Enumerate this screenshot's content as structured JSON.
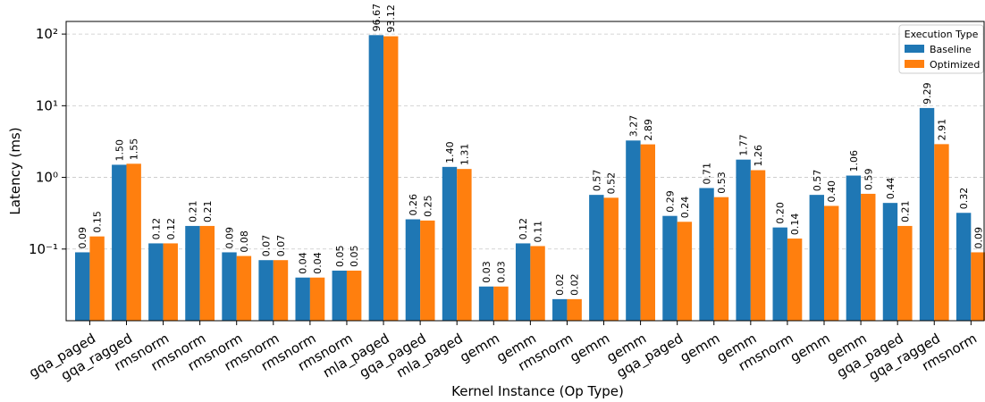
{
  "chart_data": {
    "type": "bar",
    "scale": "log",
    "xlabel": "Kernel Instance (Op Type)",
    "ylabel": "Latency (ms)",
    "ylim": [
      0.01,
      150
    ],
    "yticks": [
      {
        "value": 0.1,
        "label": "10⁻¹"
      },
      {
        "value": 1,
        "label": "10⁰"
      },
      {
        "value": 10,
        "label": "10¹"
      },
      {
        "value": 100,
        "label": "10²"
      }
    ],
    "grid": "y-dashed",
    "legend": {
      "title": "Execution Type",
      "placement": "top-right"
    },
    "categories": [
      "gqa_paged",
      "gqa_ragged",
      "rmsnorm",
      "rmsnorm",
      "rmsnorm",
      "rmsnorm",
      "rmsnorm",
      "rmsnorm",
      "mla_paged",
      "gqa_paged",
      "mla_paged",
      "gemm",
      "gemm",
      "rmsnorm",
      "gemm",
      "gemm",
      "gqa_paged",
      "gemm",
      "gemm",
      "rmsnorm",
      "gemm",
      "gemm",
      "gqa_paged",
      "gqa_ragged",
      "rmsnorm"
    ],
    "series": [
      {
        "name": "Baseline",
        "color": "#1f77b4",
        "values": [
          0.09,
          1.5,
          0.12,
          0.21,
          0.09,
          0.07,
          0.04,
          0.05,
          96.67,
          0.26,
          1.4,
          0.03,
          0.12,
          0.02,
          0.57,
          3.27,
          0.29,
          0.71,
          1.77,
          0.2,
          0.57,
          1.06,
          0.44,
          9.29,
          0.32
        ],
        "labels": [
          "0.09",
          "1.50",
          "0.12",
          "0.21",
          "0.09",
          "0.07",
          "0.04",
          "0.05",
          "96.67",
          "0.26",
          "1.40",
          "0.03",
          "0.12",
          "0.02",
          "0.57",
          "3.27",
          "0.29",
          "0.71",
          "1.77",
          "0.20",
          "0.57",
          "1.06",
          "0.44",
          "9.29",
          "0.32"
        ]
      },
      {
        "name": "Optimized",
        "color": "#ff7f0e",
        "values": [
          0.15,
          1.55,
          0.12,
          0.21,
          0.08,
          0.07,
          0.04,
          0.05,
          93.12,
          0.25,
          1.31,
          0.03,
          0.11,
          0.02,
          0.52,
          2.89,
          0.24,
          0.53,
          1.26,
          0.14,
          0.4,
          0.59,
          0.21,
          2.91,
          0.09
        ],
        "labels": [
          "0.15",
          "1.55",
          "0.12",
          "0.21",
          "0.08",
          "0.07",
          "0.04",
          "0.05",
          "93.12",
          "0.25",
          "1.31",
          "0.03",
          "0.11",
          "0.02",
          "0.52",
          "2.89",
          "0.24",
          "0.53",
          "1.26",
          "0.14",
          "0.40",
          "0.59",
          "0.21",
          "2.91",
          "0.09"
        ]
      }
    ]
  }
}
